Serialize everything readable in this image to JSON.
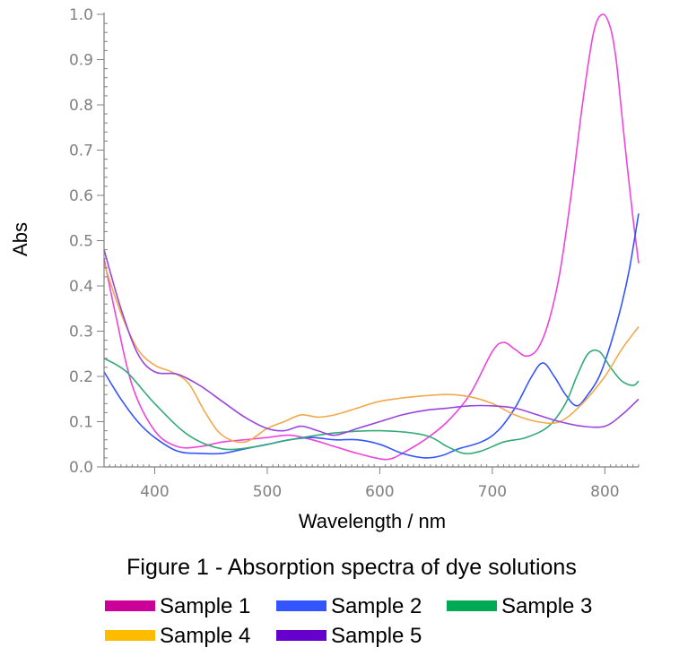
{
  "chart_data": {
    "type": "line",
    "caption": "Figure 1 - Absorption spectra of dye solutions",
    "xlabel": "Wavelength / nm",
    "ylabel": "Abs",
    "xlim": [
      355,
      830
    ],
    "ylim": [
      0,
      1.0
    ],
    "x_ticks": [
      400,
      500,
      600,
      700,
      800
    ],
    "y_ticks": [
      "0.0",
      "0.1",
      "0.2",
      "0.3",
      "0.4",
      "0.5",
      "0.6",
      "0.7",
      "0.8",
      "0.9",
      "1.0"
    ],
    "grid": false,
    "legend_position": "bottom",
    "series": [
      {
        "name": "Sample 1",
        "color": "#cc0099",
        "line_color": "#ee44dd",
        "x": [
          355,
          365,
          380,
          400,
          420,
          440,
          460,
          480,
          500,
          520,
          540,
          560,
          580,
          600,
          610,
          620,
          640,
          660,
          680,
          700,
          710,
          720,
          730,
          740,
          750,
          760,
          770,
          780,
          790,
          798,
          805,
          810,
          815,
          820,
          825,
          830
        ],
        "y": [
          0.46,
          0.34,
          0.18,
          0.08,
          0.045,
          0.045,
          0.055,
          0.06,
          0.065,
          0.07,
          0.06,
          0.045,
          0.03,
          0.018,
          0.018,
          0.03,
          0.06,
          0.1,
          0.16,
          0.255,
          0.275,
          0.26,
          0.245,
          0.26,
          0.32,
          0.43,
          0.6,
          0.8,
          0.96,
          1.0,
          0.97,
          0.9,
          0.78,
          0.66,
          0.55,
          0.45
        ]
      },
      {
        "name": "Sample 2",
        "color": "#3355ff",
        "line_color": "#3355ff",
        "x": [
          355,
          370,
          385,
          400,
          420,
          440,
          460,
          480,
          500,
          520,
          540,
          560,
          580,
          600,
          620,
          640,
          655,
          670,
          690,
          705,
          720,
          735,
          745,
          755,
          765,
          775,
          785,
          795,
          805,
          815,
          822,
          830
        ],
        "y": [
          0.21,
          0.15,
          0.1,
          0.065,
          0.035,
          0.03,
          0.03,
          0.04,
          0.05,
          0.06,
          0.065,
          0.06,
          0.06,
          0.05,
          0.03,
          0.02,
          0.025,
          0.04,
          0.055,
          0.08,
          0.13,
          0.2,
          0.23,
          0.2,
          0.16,
          0.135,
          0.16,
          0.2,
          0.27,
          0.36,
          0.44,
          0.56
        ]
      },
      {
        "name": "Sample 3",
        "color": "#00aa55",
        "line_color": "#33aa77",
        "x": [
          355,
          375,
          400,
          430,
          460,
          490,
          520,
          560,
          600,
          640,
          660,
          675,
          690,
          710,
          730,
          750,
          765,
          775,
          785,
          795,
          805,
          815,
          825,
          830
        ],
        "y": [
          0.24,
          0.21,
          0.14,
          0.07,
          0.04,
          0.045,
          0.06,
          0.075,
          0.08,
          0.07,
          0.045,
          0.03,
          0.035,
          0.055,
          0.065,
          0.09,
          0.14,
          0.2,
          0.25,
          0.255,
          0.22,
          0.19,
          0.18,
          0.19
        ]
      },
      {
        "name": "Sample 4",
        "color": "#ffbb00",
        "line_color": "#f2a94a",
        "x": [
          355,
          370,
          385,
          400,
          415,
          430,
          445,
          460,
          480,
          500,
          515,
          530,
          545,
          560,
          580,
          600,
          630,
          660,
          680,
          700,
          720,
          740,
          760,
          780,
          800,
          815,
          830
        ],
        "y": [
          0.45,
          0.34,
          0.26,
          0.225,
          0.21,
          0.185,
          0.12,
          0.07,
          0.055,
          0.085,
          0.1,
          0.115,
          0.11,
          0.115,
          0.13,
          0.145,
          0.155,
          0.16,
          0.155,
          0.14,
          0.115,
          0.1,
          0.1,
          0.14,
          0.2,
          0.26,
          0.31
        ]
      },
      {
        "name": "Sample 5",
        "color": "#6600cc",
        "line_color": "#9944dd",
        "x": [
          355,
          370,
          385,
          400,
          420,
          440,
          460,
          480,
          500,
          515,
          530,
          545,
          560,
          580,
          600,
          620,
          640,
          660,
          680,
          700,
          720,
          740,
          760,
          780,
          800,
          815,
          830
        ],
        "y": [
          0.48,
          0.35,
          0.25,
          0.21,
          0.205,
          0.18,
          0.145,
          0.11,
          0.085,
          0.08,
          0.09,
          0.08,
          0.07,
          0.085,
          0.1,
          0.115,
          0.125,
          0.13,
          0.135,
          0.135,
          0.13,
          0.115,
          0.1,
          0.09,
          0.09,
          0.115,
          0.15
        ]
      }
    ]
  }
}
